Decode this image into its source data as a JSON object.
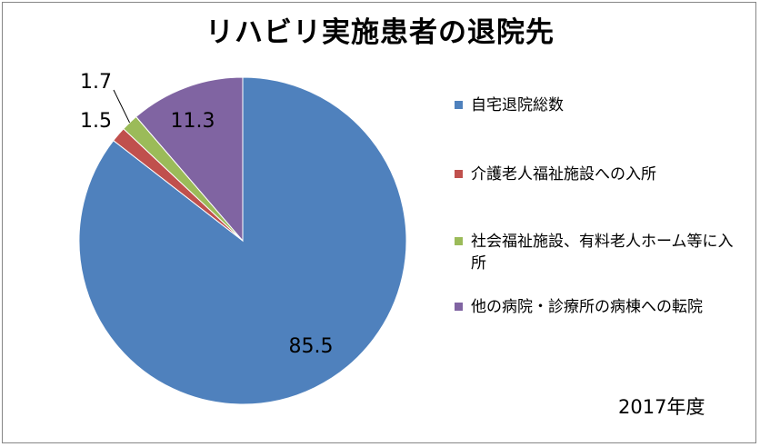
{
  "chart_data": {
    "type": "pie",
    "title": "リハビリ実施患者の退院先",
    "slices": [
      {
        "label": "自宅退院総数",
        "value": 85.5,
        "color": "#4F81BD"
      },
      {
        "label": "介護老人福祉施設への入所",
        "value": 1.5,
        "color": "#C0504D"
      },
      {
        "label": "社会福祉施設、有料老人ホーム等に入所",
        "value": 1.7,
        "color": "#9BBB59"
      },
      {
        "label": "他の病院・診療所の病棟への転院",
        "value": 11.3,
        "color": "#8064A2"
      }
    ],
    "data_labels": [
      "85.5",
      "1.5",
      "1.7",
      "11.3"
    ],
    "legend_position": "right",
    "annotation": "2017年度"
  }
}
